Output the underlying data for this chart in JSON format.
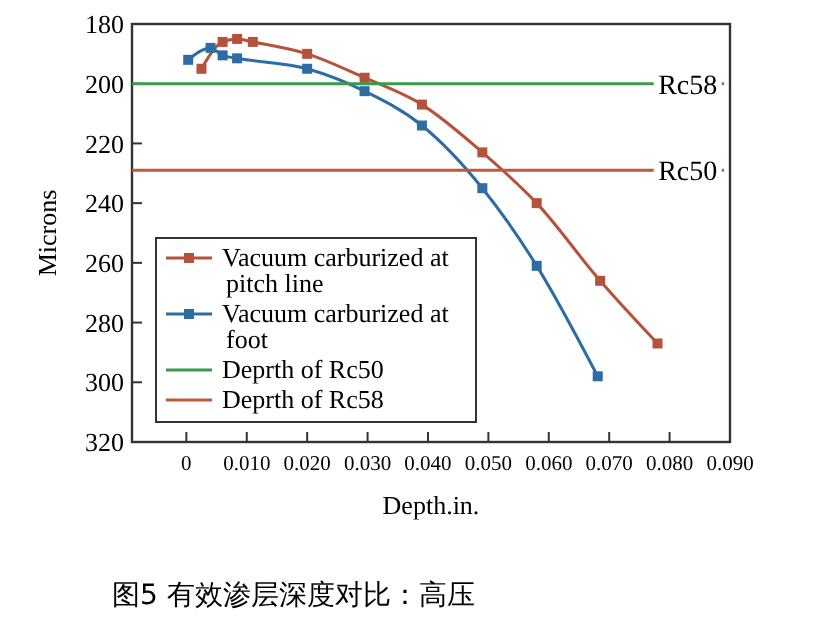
{
  "chart_data": {
    "type": "line",
    "xlabel": "Depth.in.",
    "ylabel": "Microns",
    "xlim": [
      -0.009,
      0.09
    ],
    "xticks": [
      0,
      {
        "value": 0.01,
        "label": "0.010"
      },
      {
        "value": 0.02,
        "label": "0.020"
      },
      {
        "value": 0.03,
        "label": "0.030"
      },
      {
        "value": 0.04,
        "label": "0.040"
      },
      {
        "value": 0.05,
        "label": "0.050"
      },
      {
        "value": 0.06,
        "label": "0.060"
      },
      {
        "value": 0.07,
        "label": "0.070"
      },
      {
        "value": 0.08,
        "label": "0.080"
      },
      {
        "value": 0.09,
        "label": "0.090"
      }
    ],
    "ylim": [
      320,
      180
    ],
    "yticks": [
      180,
      200,
      220,
      240,
      260,
      280,
      300,
      320
    ],
    "grid": false,
    "legend": "bottom left",
    "marker": "square",
    "line_style": "solid",
    "series": [
      {
        "name": "Vacuum carburized at pitch line",
        "color": "#b5523b",
        "x": [
          0.0025,
          0.006,
          0.0084,
          0.011,
          0.02,
          0.0295,
          0.039,
          0.049,
          0.058,
          0.0685,
          0.078
        ],
        "values": [
          195,
          186,
          185,
          186,
          190,
          198,
          207,
          223,
          240,
          266,
          287
        ]
      },
      {
        "name": "Vacuum carburized at foot",
        "color": "#2e6da4",
        "x": [
          0.0003,
          0.004,
          0.006,
          0.0084,
          0.02,
          0.0295,
          0.039,
          0.049,
          0.058,
          0.0681
        ],
        "values": [
          192,
          188,
          190.5,
          191.5,
          195,
          202.5,
          214,
          235,
          261,
          298
        ]
      },
      {
        "name": "Deprth of Rc50",
        "color": "#3a9a4a",
        "marker": "none",
        "x": [
          -0.009,
          0.089
        ],
        "values": [
          200,
          200
        ]
      },
      {
        "name": "Deprth of Rc58",
        "color": "#c0583a",
        "marker": "none",
        "x": [
          -0.009,
          0.089
        ],
        "values": [
          229,
          229
        ]
      }
    ],
    "annotations": [
      {
        "text": "Rc58",
        "x": 0.083,
        "y": 200
      },
      {
        "text": "Rc50",
        "x": 0.083,
        "y": 229
      },
      "图5 有效渗层深度对比：高压"
    ]
  }
}
